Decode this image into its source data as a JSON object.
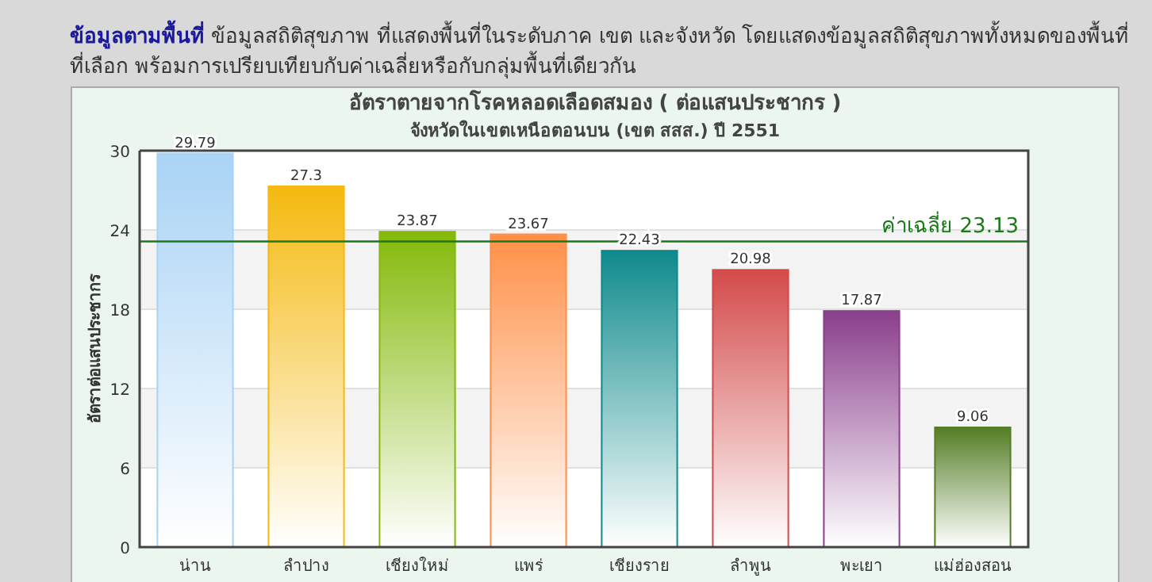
{
  "chart_data": {
    "type": "bar",
    "title": "อัตราตายจากโรคหลอดเลือดสมอง ( ต่อแสนประชากร )",
    "subtitle": "จังหวัดในเขตเหนือตอนบน  (เขต สสส.) ปี 2551",
    "ylabel": "อัตราต่อแสนประชากร",
    "categories": [
      "น่าน",
      "ลำปาง",
      "เชียงใหม่",
      "แพร่",
      "เชียงราย",
      "ลำพูน",
      "พะเยา",
      "แม่ฮ่องสอน"
    ],
    "values": [
      29.79,
      27.3,
      23.87,
      23.67,
      22.43,
      20.98,
      17.87,
      9.06
    ],
    "colors": [
      "#a9d3f5",
      "#f5b90f",
      "#84b90a",
      "#ff9048",
      "#0f8a8c",
      "#d44a4a",
      "#8a3f8c",
      "#557d25"
    ],
    "data_labels": true,
    "ylim": [
      0,
      30
    ],
    "yticks": [
      0,
      6,
      12,
      18,
      24,
      30
    ],
    "grid": "y",
    "ref_lines": [
      {
        "axis": "y",
        "value": 23.13,
        "label": "ค่าเฉลี่ย 23.13",
        "color": "#1a7a1a"
      }
    ],
    "annotations": [
      "ข้อมูลตามพื้นที่",
      "ข้อมูลสถิติสุขภาพ ที่แสดงพื้นที่ในระดับภาค เขต และจังหวัด โดยแสดงข้อมูลสถิติสุขภาพทั้งหมดของพื้นที่ที่เลือก พร้อมการเปรียบเทียบกับค่าเฉลี่ยหรือกับกลุ่มพื้นที่เดียวกัน"
    ]
  }
}
